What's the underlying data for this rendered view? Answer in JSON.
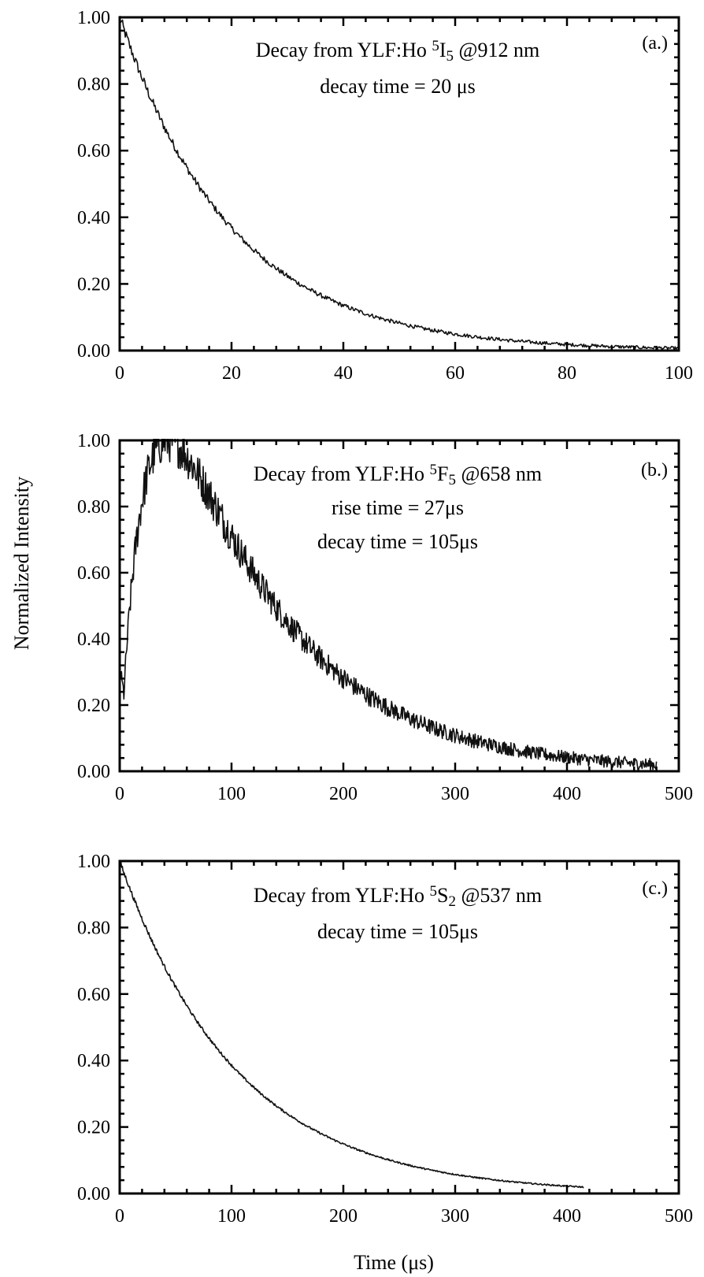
{
  "chart_data": [
    {
      "type": "line",
      "panel_tag": "(a.)",
      "annotation_lines": [
        {
          "segments": [
            {
              "text": "Decay from YLF:Ho "
            },
            {
              "text": "5",
              "shift": "super"
            },
            {
              "text": "I"
            },
            {
              "text": "5",
              "shift": "sub"
            },
            {
              "text": " @912 nm"
            }
          ]
        },
        {
          "segments": [
            {
              "text": "decay time = 20 μs"
            }
          ]
        }
      ],
      "xlim": [
        0,
        100
      ],
      "ylim": [
        0,
        1
      ],
      "xticks": [
        0,
        20,
        40,
        60,
        80,
        100
      ],
      "xtick_labels": [
        "0",
        "20",
        "40",
        "60",
        "80",
        "100"
      ],
      "yticks": [
        0,
        0.2,
        0.4,
        0.6,
        0.8,
        1.0
      ],
      "ytick_labels": [
        "0.00",
        "0.20",
        "0.40",
        "0.60",
        "0.80",
        "1.00"
      ],
      "x_minor_per_major": 4,
      "y_minor_per_major": 4,
      "curve": {
        "model": "decay",
        "decay_time": 20,
        "end": 100,
        "noise": 0.012,
        "points": 600
      },
      "grid": false
    },
    {
      "type": "line",
      "panel_tag": "(b.)",
      "annotation_lines": [
        {
          "segments": [
            {
              "text": "Decay from YLF:Ho "
            },
            {
              "text": "5",
              "shift": "super"
            },
            {
              "text": "F"
            },
            {
              "text": "5",
              "shift": "sub"
            },
            {
              "text": " @658 nm"
            }
          ]
        },
        {
          "segments": [
            {
              "text": "rise time = 27μs"
            }
          ]
        },
        {
          "segments": [
            {
              "text": "decay time = 105μs"
            }
          ]
        }
      ],
      "xlim": [
        0,
        500
      ],
      "ylim": [
        0,
        1
      ],
      "xticks": [
        0,
        100,
        200,
        300,
        400,
        500
      ],
      "xtick_labels": [
        "0",
        "100",
        "200",
        "300",
        "400",
        "500"
      ],
      "yticks": [
        0,
        0.2,
        0.4,
        0.6,
        0.8,
        1.0
      ],
      "ytick_labels": [
        "0.00",
        "0.20",
        "0.40",
        "0.60",
        "0.80",
        "1.00"
      ],
      "x_minor_per_major": 4,
      "y_minor_per_major": 4,
      "curve": {
        "model": "rise-decay",
        "rise_time": 27,
        "decay_time": 105,
        "start_value": 0.32,
        "end": 480,
        "noise": 0.05,
        "points": 900
      },
      "grid": false
    },
    {
      "type": "line",
      "panel_tag": "(c.)",
      "annotation_lines": [
        {
          "segments": [
            {
              "text": "Decay from YLF:Ho "
            },
            {
              "text": "5",
              "shift": "super"
            },
            {
              "text": "S"
            },
            {
              "text": "2",
              "shift": "sub"
            },
            {
              "text": " @537 nm"
            }
          ]
        },
        {
          "segments": [
            {
              "text": "decay time = 105μs"
            }
          ]
        }
      ],
      "xlim": [
        0,
        500
      ],
      "ylim": [
        0,
        1
      ],
      "xticks": [
        0,
        100,
        200,
        300,
        400,
        500
      ],
      "xtick_labels": [
        "0",
        "100",
        "200",
        "300",
        "400",
        "500"
      ],
      "yticks": [
        0,
        0.2,
        0.4,
        0.6,
        0.8,
        1.0
      ],
      "ytick_labels": [
        "0.00",
        "0.20",
        "0.40",
        "0.60",
        "0.80",
        "1.00"
      ],
      "x_minor_per_major": 4,
      "y_minor_per_major": 4,
      "curve": {
        "model": "decay",
        "decay_time": 105,
        "end": 415,
        "noise": 0.005,
        "points": 700
      },
      "grid": false
    }
  ],
  "ylabel": "Normalized Intensity",
  "xlabel": "Time (μs)"
}
